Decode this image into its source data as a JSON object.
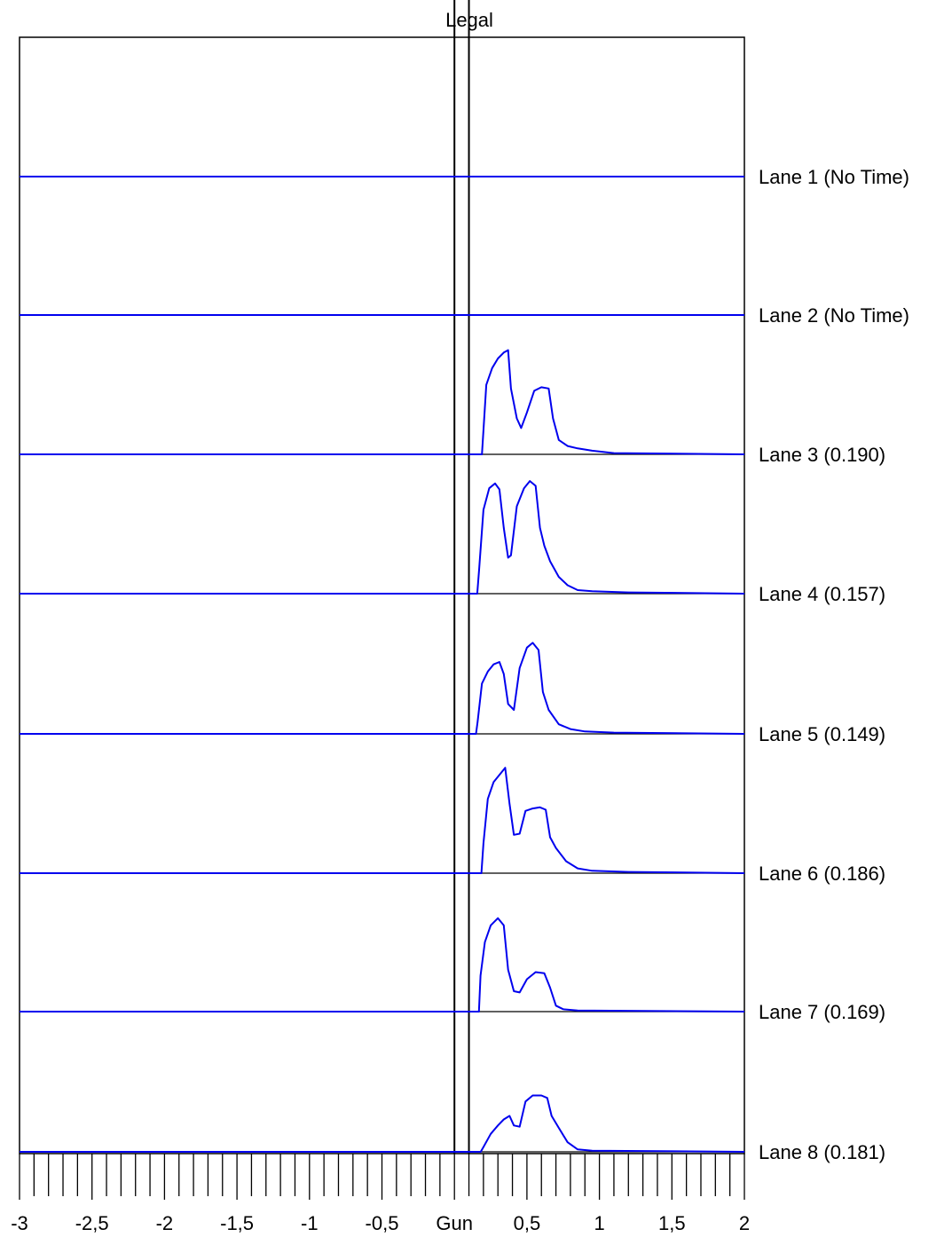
{
  "chart_data": {
    "type": "line",
    "title": "",
    "legal_label": "Legal",
    "xlim": [
      -3,
      2
    ],
    "x_ticks": [
      {
        "value": -3,
        "label": "-3"
      },
      {
        "value": -2.5,
        "label": "-2,5"
      },
      {
        "value": -2,
        "label": "-2"
      },
      {
        "value": -1.5,
        "label": "-1,5"
      },
      {
        "value": -1,
        "label": "-1"
      },
      {
        "value": -0.5,
        "label": "-0,5"
      },
      {
        "value": 0,
        "label": "Gun"
      },
      {
        "value": 0.5,
        "label": "0,5"
      },
      {
        "value": 1,
        "label": "1"
      },
      {
        "value": 1.5,
        "label": "1,5"
      },
      {
        "value": 2,
        "label": "2"
      }
    ],
    "minor_tick_step": 0.1,
    "legal_window": [
      0,
      0.1
    ],
    "colors": {
      "trace": "#0000ee",
      "frame": "#000000"
    },
    "lanes": [
      {
        "label": "Lane 1 (No Time)",
        "reaction_time": null,
        "points": [
          [
            -3,
            0
          ],
          [
            2,
            0
          ]
        ]
      },
      {
        "label": "Lane 2 (No Time)",
        "reaction_time": null,
        "points": [
          [
            -3,
            0
          ],
          [
            2,
            0
          ]
        ]
      },
      {
        "label": "Lane 3 (0.190)",
        "reaction_time": 0.19,
        "points": [
          [
            -3,
            0
          ],
          [
            0.19,
            0
          ],
          [
            0.2,
            0.2
          ],
          [
            0.22,
            0.58
          ],
          [
            0.26,
            0.72
          ],
          [
            0.3,
            0.8
          ],
          [
            0.34,
            0.85
          ],
          [
            0.37,
            0.87
          ],
          [
            0.39,
            0.55
          ],
          [
            0.43,
            0.3
          ],
          [
            0.46,
            0.22
          ],
          [
            0.5,
            0.35
          ],
          [
            0.55,
            0.53
          ],
          [
            0.6,
            0.56
          ],
          [
            0.65,
            0.55
          ],
          [
            0.68,
            0.3
          ],
          [
            0.72,
            0.12
          ],
          [
            0.78,
            0.07
          ],
          [
            0.85,
            0.05
          ],
          [
            0.95,
            0.03
          ],
          [
            1.1,
            0.01
          ],
          [
            2,
            0
          ]
        ]
      },
      {
        "label": "Lane 4 (0.157)",
        "reaction_time": 0.157,
        "points": [
          [
            -3,
            0
          ],
          [
            0.157,
            0
          ],
          [
            0.17,
            0.2
          ],
          [
            0.2,
            0.7
          ],
          [
            0.24,
            0.88
          ],
          [
            0.28,
            0.92
          ],
          [
            0.31,
            0.87
          ],
          [
            0.34,
            0.55
          ],
          [
            0.37,
            0.3
          ],
          [
            0.39,
            0.32
          ],
          [
            0.43,
            0.73
          ],
          [
            0.48,
            0.88
          ],
          [
            0.52,
            0.94
          ],
          [
            0.56,
            0.9
          ],
          [
            0.59,
            0.55
          ],
          [
            0.62,
            0.4
          ],
          [
            0.66,
            0.27
          ],
          [
            0.72,
            0.14
          ],
          [
            0.78,
            0.07
          ],
          [
            0.85,
            0.03
          ],
          [
            0.95,
            0.02
          ],
          [
            1.2,
            0.01
          ],
          [
            2,
            0
          ]
        ]
      },
      {
        "label": "Lane 5 (0.149)",
        "reaction_time": 0.149,
        "points": [
          [
            -3,
            0
          ],
          [
            0.149,
            0
          ],
          [
            0.16,
            0.1
          ],
          [
            0.19,
            0.42
          ],
          [
            0.23,
            0.52
          ],
          [
            0.27,
            0.58
          ],
          [
            0.31,
            0.6
          ],
          [
            0.34,
            0.5
          ],
          [
            0.37,
            0.25
          ],
          [
            0.41,
            0.2
          ],
          [
            0.45,
            0.55
          ],
          [
            0.5,
            0.72
          ],
          [
            0.54,
            0.76
          ],
          [
            0.58,
            0.7
          ],
          [
            0.61,
            0.35
          ],
          [
            0.65,
            0.2
          ],
          [
            0.72,
            0.08
          ],
          [
            0.8,
            0.04
          ],
          [
            0.9,
            0.02
          ],
          [
            1.1,
            0.01
          ],
          [
            2,
            0
          ]
        ]
      },
      {
        "label": "Lane 6 (0.186)",
        "reaction_time": 0.186,
        "points": [
          [
            -3,
            0
          ],
          [
            0.186,
            0
          ],
          [
            0.2,
            0.25
          ],
          [
            0.23,
            0.62
          ],
          [
            0.27,
            0.76
          ],
          [
            0.31,
            0.82
          ],
          [
            0.35,
            0.88
          ],
          [
            0.38,
            0.58
          ],
          [
            0.41,
            0.32
          ],
          [
            0.45,
            0.33
          ],
          [
            0.49,
            0.52
          ],
          [
            0.54,
            0.54
          ],
          [
            0.59,
            0.55
          ],
          [
            0.63,
            0.53
          ],
          [
            0.66,
            0.3
          ],
          [
            0.7,
            0.21
          ],
          [
            0.77,
            0.1
          ],
          [
            0.85,
            0.04
          ],
          [
            0.95,
            0.02
          ],
          [
            1.2,
            0.01
          ],
          [
            2,
            0
          ]
        ]
      },
      {
        "label": "Lane 7 (0.169)",
        "reaction_time": 0.169,
        "points": [
          [
            -3,
            0
          ],
          [
            0.169,
            0
          ],
          [
            0.18,
            0.3
          ],
          [
            0.21,
            0.58
          ],
          [
            0.25,
            0.72
          ],
          [
            0.3,
            0.78
          ],
          [
            0.34,
            0.72
          ],
          [
            0.37,
            0.35
          ],
          [
            0.41,
            0.17
          ],
          [
            0.45,
            0.16
          ],
          [
            0.5,
            0.27
          ],
          [
            0.56,
            0.33
          ],
          [
            0.62,
            0.32
          ],
          [
            0.66,
            0.2
          ],
          [
            0.7,
            0.05
          ],
          [
            0.75,
            0.02
          ],
          [
            0.85,
            0.01
          ],
          [
            2,
            0
          ]
        ]
      },
      {
        "label": "Lane 8 (0.181)",
        "reaction_time": 0.181,
        "points": [
          [
            -3,
            0
          ],
          [
            0.181,
            0
          ],
          [
            0.2,
            0.04
          ],
          [
            0.25,
            0.15
          ],
          [
            0.3,
            0.22
          ],
          [
            0.34,
            0.27
          ],
          [
            0.38,
            0.3
          ],
          [
            0.41,
            0.22
          ],
          [
            0.45,
            0.21
          ],
          [
            0.49,
            0.42
          ],
          [
            0.54,
            0.47
          ],
          [
            0.6,
            0.47
          ],
          [
            0.64,
            0.45
          ],
          [
            0.67,
            0.3
          ],
          [
            0.72,
            0.2
          ],
          [
            0.78,
            0.08
          ],
          [
            0.85,
            0.02
          ],
          [
            0.95,
            0.01
          ],
          [
            2,
            0
          ]
        ]
      }
    ]
  }
}
